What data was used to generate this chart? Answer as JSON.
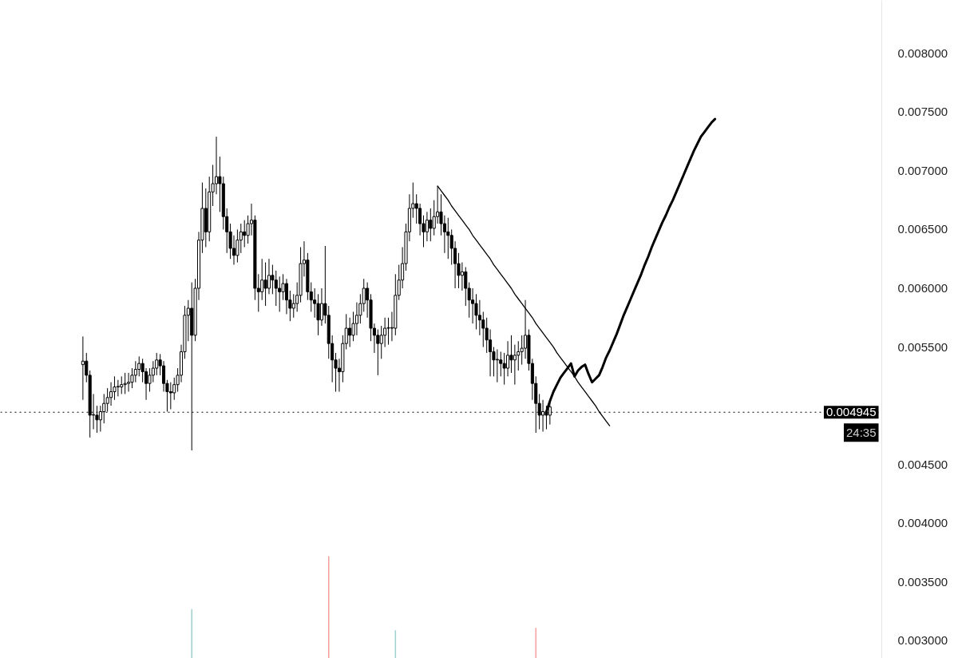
{
  "chart_data": {
    "type": "candlestick",
    "color": "#000000",
    "categories": [
      null,
      null,
      null,
      null,
      null,
      null,
      null,
      null,
      null,
      null,
      null,
      null,
      null,
      null,
      null,
      null,
      null,
      null,
      null,
      null,
      null,
      null,
      null,
      null,
      null,
      null,
      null,
      null,
      null,
      null,
      null,
      null,
      null,
      null,
      null,
      null,
      null,
      null,
      null,
      null,
      null,
      null,
      null,
      null,
      null,
      null,
      null,
      null,
      null,
      null,
      null,
      null,
      null,
      null,
      null,
      null,
      null,
      null,
      null,
      null,
      null,
      null,
      null,
      null,
      null,
      null,
      null,
      null,
      null,
      null,
      null,
      null,
      null,
      null,
      null,
      null,
      null,
      null,
      null,
      null,
      null,
      null,
      null,
      null,
      null,
      null,
      null,
      null,
      null,
      null,
      null,
      null,
      null,
      null,
      null,
      null,
      null,
      null,
      null,
      null,
      null,
      null,
      null,
      null,
      null,
      null,
      null,
      null,
      null,
      null,
      null,
      null,
      null,
      null,
      null,
      null,
      null,
      null,
      null,
      null,
      null,
      null,
      null,
      null,
      null,
      null,
      null,
      null,
      null,
      null,
      null,
      null,
      null,
      null,
      null,
      null,
      null,
      null,
      null,
      null,
      null,
      null,
      null,
      null,
      null,
      null,
      null,
      null,
      null,
      null,
      null,
      null,
      null,
      null,
      null,
      null,
      null,
      null,
      null,
      null,
      null,
      null,
      null,
      null,
      null,
      null,
      null,
      null,
      null,
      null,
      null,
      null,
      null,
      null,
      null,
      null,
      null,
      null,
      null,
      null,
      null,
      null,
      null,
      null,
      null,
      null,
      null,
      null,
      null,
      null,
      null,
      null,
      null,
      null,
      null,
      null,
      null,
      null,
      null,
      null,
      null,
      null,
      null,
      null,
      null,
      null,
      null,
      null,
      null,
      null,
      null,
      null,
      null,
      null,
      null,
      null,
      null,
      null,
      null,
      null,
      null,
      null,
      null,
      null,
      null,
      null,
      null,
      null,
      null,
      null,
      null,
      null,
      null,
      null,
      null,
      null,
      null,
      null,
      null,
      null,
      null,
      null,
      null,
      null,
      null,
      null,
      null,
      null,
      null,
      null,
      null
    ],
    "ohlc": [
      null,
      null,
      null,
      null,
      null,
      null,
      null,
      null,
      null,
      null,
      null,
      null,
      null,
      null,
      null,
      null,
      null,
      null,
      null,
      null,
      null,
      null,
      null,
      [
        0.00535,
        0.00559,
        0.00505,
        0.00538
      ],
      [
        0.00538,
        0.00545,
        0.0052,
        0.00526
      ],
      [
        0.00526,
        0.0053,
        0.00473,
        0.00492
      ],
      [
        0.00492,
        0.0051,
        0.0048,
        0.00492
      ],
      [
        0.00492,
        0.005,
        0.00477,
        0.00488
      ],
      [
        0.00488,
        0.005,
        0.00478,
        0.00495
      ],
      [
        0.00495,
        0.0051,
        0.00485,
        0.00502
      ],
      [
        0.00502,
        0.00515,
        0.00495,
        0.00507
      ],
      [
        0.00507,
        0.0052,
        0.005,
        0.00512
      ],
      [
        0.00512,
        0.00525,
        0.00505,
        0.00516
      ],
      [
        0.00516,
        0.00522,
        0.00508,
        0.00516
      ],
      [
        0.00516,
        0.00525,
        0.0051,
        0.00518
      ],
      [
        0.00518,
        0.00528,
        0.0051,
        0.00519
      ],
      [
        0.00519,
        0.00528,
        0.00512,
        0.0052
      ],
      [
        0.0052,
        0.00532,
        0.00515,
        0.00526
      ],
      [
        0.00526,
        0.00538,
        0.0052,
        0.00531
      ],
      [
        0.00531,
        0.00542,
        0.00525,
        0.00536
      ],
      [
        0.00536,
        0.0054,
        0.0052,
        0.00529
      ],
      [
        0.00529,
        0.00532,
        0.00505,
        0.00519
      ],
      [
        0.00519,
        0.00532,
        0.00512,
        0.00526
      ],
      [
        0.00526,
        0.00538,
        0.0052,
        0.00532
      ],
      [
        0.00532,
        0.00545,
        0.00526,
        0.00539
      ],
      [
        0.00539,
        0.00544,
        0.00526,
        0.00534
      ],
      [
        0.00534,
        0.00538,
        0.00512,
        0.00519
      ],
      [
        0.00519,
        0.00522,
        0.00495,
        0.00512
      ],
      [
        0.00512,
        0.0052,
        0.00497,
        0.00511
      ],
      [
        0.00511,
        0.00524,
        0.00505,
        0.00518
      ],
      [
        0.00518,
        0.00532,
        0.00512,
        0.00526
      ],
      [
        0.00526,
        0.00552,
        0.0052,
        0.00546
      ],
      [
        0.00546,
        0.00585,
        0.0054,
        0.00577
      ],
      [
        0.00577,
        0.0059,
        0.00555,
        0.00583
      ],
      [
        0.00583,
        0.00605,
        0.00462,
        0.0056
      ],
      [
        0.0056,
        0.00608,
        0.00555,
        0.006
      ],
      [
        0.006,
        0.00648,
        0.0059,
        0.00641
      ],
      [
        0.00641,
        0.0069,
        0.0063,
        0.00668
      ],
      [
        0.00668,
        0.00685,
        0.00635,
        0.00648
      ],
      [
        0.00648,
        0.00695,
        0.0064,
        0.00682
      ],
      [
        0.00682,
        0.00705,
        0.0067,
        0.00689
      ],
      [
        0.00689,
        0.00729,
        0.0068,
        0.00695
      ],
      [
        0.00695,
        0.00712,
        0.00665,
        0.00689
      ],
      [
        0.00689,
        0.00695,
        0.0065,
        0.00661
      ],
      [
        0.00661,
        0.00668,
        0.0063,
        0.00648
      ],
      [
        0.00648,
        0.00655,
        0.00625,
        0.00634
      ],
      [
        0.00634,
        0.00645,
        0.0062,
        0.00628
      ],
      [
        0.00628,
        0.0065,
        0.00622,
        0.00641
      ],
      [
        0.00641,
        0.00655,
        0.0063,
        0.00648
      ],
      [
        0.00648,
        0.00658,
        0.00635,
        0.00645
      ],
      [
        0.00645,
        0.00662,
        0.00638,
        0.00655
      ],
      [
        0.00655,
        0.00672,
        0.00645,
        0.00658
      ],
      [
        0.00658,
        0.00662,
        0.0059,
        0.006
      ],
      [
        0.006,
        0.00612,
        0.0058,
        0.00597
      ],
      [
        0.00597,
        0.00625,
        0.0059,
        0.00607
      ],
      [
        0.00607,
        0.00622,
        0.00585,
        0.006
      ],
      [
        0.006,
        0.00625,
        0.00595,
        0.00611
      ],
      [
        0.00611,
        0.0062,
        0.00595,
        0.00607
      ],
      [
        0.00607,
        0.00615,
        0.00585,
        0.006
      ],
      [
        0.006,
        0.0061,
        0.0058,
        0.00597
      ],
      [
        0.00597,
        0.00612,
        0.0059,
        0.00604
      ],
      [
        0.00604,
        0.00608,
        0.00578,
        0.0059
      ],
      [
        0.0059,
        0.00598,
        0.00572,
        0.00583
      ],
      [
        0.00583,
        0.00595,
        0.00575,
        0.00587
      ],
      [
        0.00587,
        0.00605,
        0.0058,
        0.00594
      ],
      [
        0.00594,
        0.00635,
        0.00588,
        0.00621
      ],
      [
        0.00621,
        0.0064,
        0.0061,
        0.00624
      ],
      [
        0.00624,
        0.0063,
        0.0059,
        0.00597
      ],
      [
        0.00597,
        0.00605,
        0.0058,
        0.0059
      ],
      [
        0.0059,
        0.006,
        0.00575,
        0.00587
      ],
      [
        0.00587,
        0.00595,
        0.0056,
        0.00573
      ],
      [
        0.00573,
        0.006,
        0.00568,
        0.00587
      ],
      [
        0.00587,
        0.00636,
        0.0057,
        0.00577
      ],
      [
        0.00577,
        0.00585,
        0.0054,
        0.00553
      ],
      [
        0.00553,
        0.0056,
        0.0052,
        0.00539
      ],
      [
        0.00539,
        0.00545,
        0.00512,
        0.00532
      ],
      [
        0.00532,
        0.0054,
        0.00512,
        0.00529
      ],
      [
        0.00529,
        0.0056,
        0.0052,
        0.00553
      ],
      [
        0.00553,
        0.00578,
        0.00548,
        0.00566
      ],
      [
        0.00566,
        0.00575,
        0.0055,
        0.0056
      ],
      [
        0.0056,
        0.0058,
        0.00555,
        0.0057
      ],
      [
        0.0057,
        0.00588,
        0.0056,
        0.00577
      ],
      [
        0.00577,
        0.00595,
        0.0057,
        0.00587
      ],
      [
        0.00587,
        0.00608,
        0.0058,
        0.006
      ],
      [
        0.006,
        0.00605,
        0.00575,
        0.0059
      ],
      [
        0.0059,
        0.00595,
        0.00555,
        0.00566
      ],
      [
        0.00566,
        0.0057,
        0.00545,
        0.0056
      ],
      [
        0.0056,
        0.00565,
        0.00526,
        0.00553
      ],
      [
        0.00553,
        0.00568,
        0.0054,
        0.0056
      ],
      [
        0.0056,
        0.00575,
        0.0055,
        0.00566
      ],
      [
        0.00566,
        0.00575,
        0.00552,
        0.00566
      ],
      [
        0.00566,
        0.0058,
        0.00555,
        0.00566
      ],
      [
        0.00566,
        0.00612,
        0.0056,
        0.00594
      ],
      [
        0.00594,
        0.0062,
        0.0059,
        0.00607
      ],
      [
        0.00607,
        0.00635,
        0.006,
        0.00621
      ],
      [
        0.00621,
        0.00655,
        0.00615,
        0.00648
      ],
      [
        0.00648,
        0.0068,
        0.0064,
        0.00668
      ],
      [
        0.00668,
        0.0069,
        0.0066,
        0.00672
      ],
      [
        0.00672,
        0.0068,
        0.00655,
        0.00668
      ],
      [
        0.00668,
        0.00672,
        0.00645,
        0.00655
      ],
      [
        0.00655,
        0.00662,
        0.00635,
        0.00648
      ],
      [
        0.00648,
        0.00665,
        0.0064,
        0.00658
      ],
      [
        0.00658,
        0.00668,
        0.0064,
        0.00651
      ],
      [
        0.00651,
        0.00675,
        0.00645,
        0.00661
      ],
      [
        0.00661,
        0.00687,
        0.00655,
        0.00665
      ],
      [
        0.00665,
        0.0068,
        0.00645,
        0.00655
      ],
      [
        0.00655,
        0.00662,
        0.0063,
        0.00648
      ],
      [
        0.00648,
        0.0066,
        0.00625,
        0.00645
      ],
      [
        0.00645,
        0.0065,
        0.0062,
        0.00634
      ],
      [
        0.00634,
        0.0064,
        0.006,
        0.00621
      ],
      [
        0.00621,
        0.0063,
        0.006,
        0.00611
      ],
      [
        0.00611,
        0.00622,
        0.00598,
        0.00614
      ],
      [
        0.00614,
        0.00618,
        0.00585,
        0.006
      ],
      [
        0.006,
        0.00605,
        0.00575,
        0.0059
      ],
      [
        0.0059,
        0.006,
        0.0057,
        0.00587
      ],
      [
        0.00587,
        0.00595,
        0.00565,
        0.00577
      ],
      [
        0.00577,
        0.0059,
        0.0056,
        0.00573
      ],
      [
        0.00573,
        0.0058,
        0.0055,
        0.00566
      ],
      [
        0.00566,
        0.00575,
        0.00545,
        0.00556
      ],
      [
        0.00556,
        0.00565,
        0.00525,
        0.00546
      ],
      [
        0.00546,
        0.0055,
        0.00525,
        0.00539
      ],
      [
        0.00539,
        0.00548,
        0.0052,
        0.00539
      ],
      [
        0.00539,
        0.00546,
        0.00525,
        0.00536
      ],
      [
        0.00536,
        0.00545,
        0.00518,
        0.00532
      ],
      [
        0.00532,
        0.00555,
        0.00525,
        0.00543
      ],
      [
        0.00543,
        0.0056,
        0.00528,
        0.00539
      ],
      [
        0.00539,
        0.00552,
        0.00518,
        0.00543
      ],
      [
        0.00543,
        0.00555,
        0.0053,
        0.00546
      ],
      [
        0.00546,
        0.0056,
        0.00535,
        0.00549
      ],
      [
        0.00549,
        0.0059,
        0.0054,
        0.0056
      ],
      [
        0.0056,
        0.00565,
        0.0053,
        0.00536
      ],
      [
        0.00536,
        0.0054,
        0.00505,
        0.00519
      ],
      [
        0.00519,
        0.00525,
        0.00477,
        0.00502
      ],
      [
        0.00502,
        0.0051,
        0.0048,
        0.00492
      ],
      [
        0.00492,
        0.00505,
        0.00478,
        0.00495
      ],
      [
        0.00495,
        0.005,
        0.0048,
        0.00492
      ],
      [
        0.00492,
        0.00505,
        0.00484,
        0.00499
      ],
      null,
      null,
      null,
      null,
      null,
      null,
      null,
      null,
      null,
      null,
      null,
      null,
      null,
      null,
      null,
      null,
      null,
      null,
      null,
      null,
      null,
      null,
      null,
      null,
      null,
      null,
      null,
      null,
      null,
      null,
      null,
      null,
      null,
      null,
      null,
      null,
      null,
      null,
      null,
      null,
      null,
      null,
      null,
      null,
      null,
      null,
      null,
      null,
      null,
      null,
      null,
      null,
      null,
      null,
      null,
      null,
      null,
      null,
      null,
      null,
      null,
      null,
      null,
      null,
      null,
      null,
      null,
      null,
      null,
      null,
      null,
      null,
      null,
      null,
      null,
      null,
      null,
      null,
      null,
      null,
      null,
      null,
      null,
      null,
      null,
      null,
      null,
      null,
      null,
      null,
      null,
      null,
      null,
      null
    ],
    "series": [
      {
        "type": "line",
        "color": "#000000",
        "values": [
          null,
          null,
          null,
          null,
          null,
          null,
          null,
          null,
          null,
          null,
          null,
          null,
          null,
          null,
          null,
          null,
          null,
          null,
          null,
          null,
          null,
          null,
          null,
          null,
          null,
          null,
          null,
          null,
          null,
          null,
          null,
          null,
          null,
          null,
          null,
          null,
          null,
          null,
          null,
          null,
          null,
          null,
          null,
          null,
          null,
          null,
          null,
          null,
          null,
          null,
          null,
          null,
          null,
          null,
          null,
          null,
          null,
          null,
          null,
          null,
          null,
          null,
          null,
          null,
          null,
          null,
          null,
          null,
          null,
          null,
          null,
          null,
          null,
          null,
          null,
          null,
          null,
          null,
          null,
          null,
          null,
          null,
          null,
          null,
          null,
          null,
          null,
          null,
          null,
          null,
          null,
          null,
          null,
          null,
          null,
          null,
          null,
          null,
          null,
          null,
          null,
          null,
          null,
          null,
          null,
          null,
          null,
          null,
          null,
          null,
          null,
          null,
          null,
          null,
          null,
          null,
          null,
          null,
          null,
          null,
          null,
          null,
          null,
          null,
          0.00687,
          0.00683,
          0.00679,
          0.00675,
          0.0067,
          0.00666,
          0.00662,
          0.00658,
          0.00654,
          0.0065,
          0.00645,
          0.00641,
          0.00637,
          0.00633,
          0.00629,
          0.00625,
          0.0062,
          0.00616,
          0.00612,
          0.00608,
          0.00604,
          0.006,
          0.00595,
          0.00591,
          0.00587,
          0.00583,
          0.00579,
          0.00575,
          0.0057,
          0.00566,
          0.00562,
          0.00558,
          0.00554,
          0.0055,
          0.00545,
          0.00541,
          0.00537,
          0.00533,
          0.00529,
          0.00525,
          0.0052,
          0.00516,
          0.00512,
          0.00508,
          0.00504,
          0.005,
          0.00495,
          0.00491,
          0.00487,
          0.00483,
          null,
          null,
          null,
          null,
          null,
          null,
          null,
          null,
          null,
          null,
          null,
          null,
          null,
          null,
          null,
          null,
          null,
          null,
          null,
          null,
          null,
          null,
          null,
          null,
          null,
          null,
          null,
          null,
          null,
          null,
          null,
          null,
          null,
          null,
          null,
          null,
          null,
          null,
          null,
          null,
          null,
          null,
          null,
          null,
          null,
          null,
          null,
          null,
          null,
          null,
          null,
          null,
          null,
          null,
          null,
          null,
          null,
          null,
          null,
          null,
          null,
          null,
          null,
          null,
          null,
          null,
          null,
          null,
          null,
          null,
          null,
          null,
          null,
          null,
          null,
          null,
          null
        ]
      },
      {
        "type": "line",
        "color": "#000000",
        "values": [
          null,
          null,
          null,
          null,
          null,
          null,
          null,
          null,
          null,
          null,
          null,
          null,
          null,
          null,
          null,
          null,
          null,
          null,
          null,
          null,
          null,
          null,
          null,
          null,
          null,
          null,
          null,
          null,
          null,
          null,
          null,
          null,
          null,
          null,
          null,
          null,
          null,
          null,
          null,
          null,
          null,
          null,
          null,
          null,
          null,
          null,
          null,
          null,
          null,
          null,
          null,
          null,
          null,
          null,
          null,
          null,
          null,
          null,
          null,
          null,
          null,
          null,
          null,
          null,
          null,
          null,
          null,
          null,
          null,
          null,
          null,
          null,
          null,
          null,
          null,
          null,
          null,
          null,
          null,
          null,
          null,
          null,
          null,
          null,
          null,
          null,
          null,
          null,
          null,
          null,
          null,
          null,
          null,
          null,
          null,
          null,
          null,
          null,
          null,
          null,
          null,
          null,
          null,
          null,
          null,
          null,
          null,
          null,
          null,
          null,
          null,
          null,
          null,
          null,
          null,
          null,
          null,
          null,
          null,
          null,
          null,
          null,
          null,
          null,
          null,
          null,
          null,
          null,
          null,
          null,
          null,
          null,
          null,
          null,
          null,
          null,
          null,
          null,
          null,
          null,
          null,
          null,
          null,
          null,
          null,
          null,
          null,
          null,
          null,
          null,
          null,
          null,
          null,
          null,
          null,
          0.00495,
          0.00504,
          0.00512,
          0.00518,
          0.00524,
          0.00528,
          0.00532,
          0.00536,
          0.00525,
          0.0053,
          0.00533,
          0.00535,
          0.00527,
          0.0052,
          0.00523,
          0.00526,
          0.00533,
          0.00541,
          0.00547,
          0.00554,
          0.00561,
          0.00569,
          0.00577,
          0.00584,
          0.00591,
          0.00598,
          0.00605,
          0.00612,
          0.0062,
          0.00627,
          0.00635,
          0.00642,
          0.00649,
          0.00656,
          0.00662,
          0.00669,
          0.00675,
          0.00682,
          0.00689,
          0.00696,
          0.00703,
          0.0071,
          0.00717,
          0.00723,
          0.00729,
          0.00733,
          0.00737,
          0.00741,
          0.00744,
          null,
          null,
          null,
          null,
          null,
          null,
          null,
          null,
          null,
          null,
          null,
          null,
          null,
          null,
          null,
          null,
          null,
          null,
          null,
          null,
          null,
          null,
          null,
          null,
          null,
          null,
          null,
          null,
          null,
          null,
          null,
          null,
          null,
          null,
          null,
          null,
          null,
          null,
          null,
          null,
          null,
          null,
          null,
          null,
          null,
          null,
          null
        ]
      },
      {
        "type": "bar",
        "base": [
          null,
          null,
          null,
          null,
          null,
          null,
          null,
          null,
          null,
          null,
          null,
          null,
          null,
          null,
          null,
          null,
          null,
          null,
          null,
          null,
          null,
          null,
          null,
          null,
          null,
          null,
          null,
          null,
          null,
          null,
          null,
          null,
          null,
          null,
          null,
          null,
          null,
          null,
          null,
          null,
          null,
          null,
          null,
          null,
          null,
          null,
          null,
          null,
          null,
          null,
          null,
          null,
          null,
          null,
          0.00285,
          null,
          null,
          null,
          null,
          null,
          null,
          null,
          null,
          null,
          null,
          null,
          null,
          null,
          null,
          null,
          null,
          null,
          null,
          null,
          null,
          null,
          null,
          null,
          null,
          null,
          null,
          null,
          null,
          null,
          null,
          null,
          null,
          null,
          null,
          null,
          null,
          null,
          null,
          0.00285,
          null,
          null,
          null,
          null,
          null,
          null,
          null,
          null,
          null,
          null,
          null,
          null,
          null,
          null,
          null,
          null,
          null,
          null,
          0.00285,
          null,
          null,
          null,
          null,
          null,
          null,
          null,
          null,
          null,
          null,
          null,
          null,
          null,
          null,
          null,
          null,
          null,
          null,
          null,
          null,
          null,
          null,
          null,
          null,
          null,
          null,
          null,
          null,
          null,
          null,
          null,
          null,
          null,
          null,
          null,
          null,
          null,
          null,
          null,
          0.00285,
          null,
          null,
          null,
          null,
          null,
          null,
          null,
          null,
          null,
          null,
          null,
          null,
          null,
          null,
          null,
          null,
          null,
          null,
          null,
          null,
          null,
          null,
          null,
          null,
          null,
          null,
          null,
          null,
          null,
          null,
          null,
          null,
          null,
          null,
          null,
          null,
          null,
          null,
          null,
          null,
          null,
          null,
          null,
          null,
          null,
          null,
          null,
          null,
          null,
          null,
          null,
          null,
          null,
          null,
          null,
          null,
          null,
          null,
          null,
          null,
          null,
          null,
          null,
          null,
          null,
          null,
          null,
          null,
          null,
          null,
          null,
          null,
          null,
          null,
          null,
          null,
          null,
          null,
          null,
          null,
          null,
          null,
          null,
          null,
          null,
          null,
          null,
          null,
          null,
          null,
          null,
          null,
          null,
          null,
          null,
          null,
          null,
          null
        ],
        "values": [
          null,
          null,
          null,
          null,
          null,
          null,
          null,
          null,
          null,
          null,
          null,
          null,
          null,
          null,
          null,
          null,
          null,
          null,
          null,
          null,
          null,
          null,
          null,
          null,
          null,
          null,
          null,
          null,
          null,
          null,
          null,
          null,
          null,
          null,
          null,
          null,
          null,
          null,
          null,
          null,
          null,
          null,
          null,
          null,
          null,
          null,
          null,
          null,
          null,
          null,
          null,
          null,
          null,
          null,
          0.00042,
          null,
          null,
          null,
          null,
          null,
          null,
          null,
          null,
          null,
          null,
          null,
          null,
          null,
          null,
          null,
          null,
          null,
          null,
          null,
          null,
          null,
          null,
          null,
          null,
          null,
          null,
          null,
          null,
          null,
          null,
          null,
          null,
          null,
          null,
          null,
          null,
          null,
          null,
          0.00087,
          null,
          null,
          null,
          null,
          null,
          null,
          null,
          null,
          null,
          null,
          null,
          null,
          null,
          null,
          null,
          null,
          null,
          null,
          0.00024,
          null,
          null,
          null,
          null,
          null,
          null,
          null,
          null,
          null,
          null,
          null,
          null,
          null,
          null,
          null,
          null,
          null,
          null,
          null,
          null,
          null,
          null,
          null,
          null,
          null,
          null,
          null,
          null,
          null,
          null,
          null,
          null,
          null,
          null,
          null,
          null,
          null,
          null,
          null,
          0.00026,
          null,
          null,
          null,
          null,
          null,
          null,
          null,
          null,
          null,
          null,
          null,
          null,
          null,
          null,
          null,
          null,
          null,
          null,
          null,
          null,
          null,
          null,
          null,
          null,
          null,
          null,
          null,
          null,
          null,
          null,
          null,
          null,
          null,
          null,
          null,
          null,
          null,
          null,
          null,
          null,
          null,
          null,
          null,
          null,
          null,
          null,
          null,
          null,
          null,
          null,
          null,
          null,
          null,
          null,
          null,
          null,
          null,
          null,
          null,
          null,
          null,
          null,
          null,
          null,
          null,
          null,
          null,
          null,
          null,
          null,
          null,
          null,
          null,
          null,
          null,
          null,
          null,
          null,
          null,
          null,
          null,
          null,
          null,
          null,
          null,
          null,
          null,
          null,
          null,
          null,
          null,
          null,
          null,
          null,
          null,
          null,
          null,
          null
        ],
        "colors": [
          null,
          null,
          null,
          null,
          null,
          null,
          null,
          null,
          null,
          null,
          null,
          null,
          null,
          null,
          null,
          null,
          null,
          null,
          null,
          null,
          null,
          null,
          null,
          null,
          null,
          null,
          null,
          null,
          null,
          null,
          null,
          null,
          null,
          null,
          null,
          null,
          null,
          null,
          null,
          null,
          null,
          null,
          null,
          null,
          null,
          null,
          null,
          null,
          null,
          null,
          null,
          null,
          null,
          null,
          "#9fd3cf",
          null,
          null,
          null,
          null,
          null,
          null,
          null,
          null,
          null,
          null,
          null,
          null,
          null,
          null,
          null,
          null,
          null,
          null,
          null,
          null,
          null,
          null,
          null,
          null,
          null,
          null,
          null,
          null,
          null,
          null,
          null,
          null,
          null,
          null,
          null,
          null,
          null,
          null,
          "#f2a0a0",
          null,
          null,
          null,
          null,
          null,
          null,
          null,
          null,
          null,
          null,
          null,
          null,
          null,
          null,
          null,
          null,
          null,
          null,
          "#9fd3cf",
          null,
          null,
          null,
          null,
          null,
          null,
          null,
          null,
          null,
          null,
          null,
          null,
          null,
          null,
          null,
          null,
          null,
          null,
          null,
          null,
          null,
          null,
          null,
          null,
          null,
          null,
          null,
          null,
          null,
          null,
          null,
          null,
          null,
          null,
          null,
          null,
          null,
          null,
          null,
          "#f2a0a0",
          null,
          null,
          null,
          null,
          null,
          null,
          null,
          null,
          null,
          null,
          null,
          null,
          null,
          null,
          null,
          null,
          null,
          null,
          null,
          null,
          null,
          null,
          null,
          null,
          null,
          null,
          null,
          null,
          null,
          null,
          null,
          null,
          null,
          null,
          null,
          null,
          null,
          null,
          null,
          null,
          null,
          null,
          null,
          null,
          null,
          null,
          null,
          null,
          null,
          null,
          null,
          null,
          null,
          null,
          null,
          null,
          null,
          null,
          null,
          null,
          null,
          null,
          null,
          null,
          null,
          null,
          null,
          null,
          null,
          null,
          null,
          null,
          null,
          null,
          null,
          null,
          null,
          null,
          null,
          null,
          null,
          null,
          null,
          null,
          null,
          null,
          null,
          null,
          null,
          null,
          null,
          null,
          null,
          null,
          null,
          null,
          null,
          null
        ]
      }
    ],
    "ylim": [
      0.00285,
      0.00845
    ],
    "yticks": [
      {
        "value": 0.003,
        "label": "0.003000"
      },
      {
        "value": 0.0035,
        "label": "0.003500"
      },
      {
        "value": 0.004,
        "label": "0.004000"
      },
      {
        "value": 0.0045,
        "label": "0.004500"
      },
      {
        "value": 0.0055,
        "label": "0.005500"
      },
      {
        "value": 0.006,
        "label": "0.006000"
      },
      {
        "value": 0.0065,
        "label": "0.006500"
      },
      {
        "value": 0.007,
        "label": "0.007000"
      },
      {
        "value": 0.0075,
        "label": "0.007500"
      },
      {
        "value": 0.008,
        "label": "0.008000"
      }
    ],
    "tick_labels": "y",
    "ref_lines": [
      {
        "axis": "y",
        "value": 0.004945,
        "label": "0.004945",
        "color": "#000000",
        "line_style": "dotted"
      }
    ],
    "annotations": [
      "24:35"
    ]
  }
}
